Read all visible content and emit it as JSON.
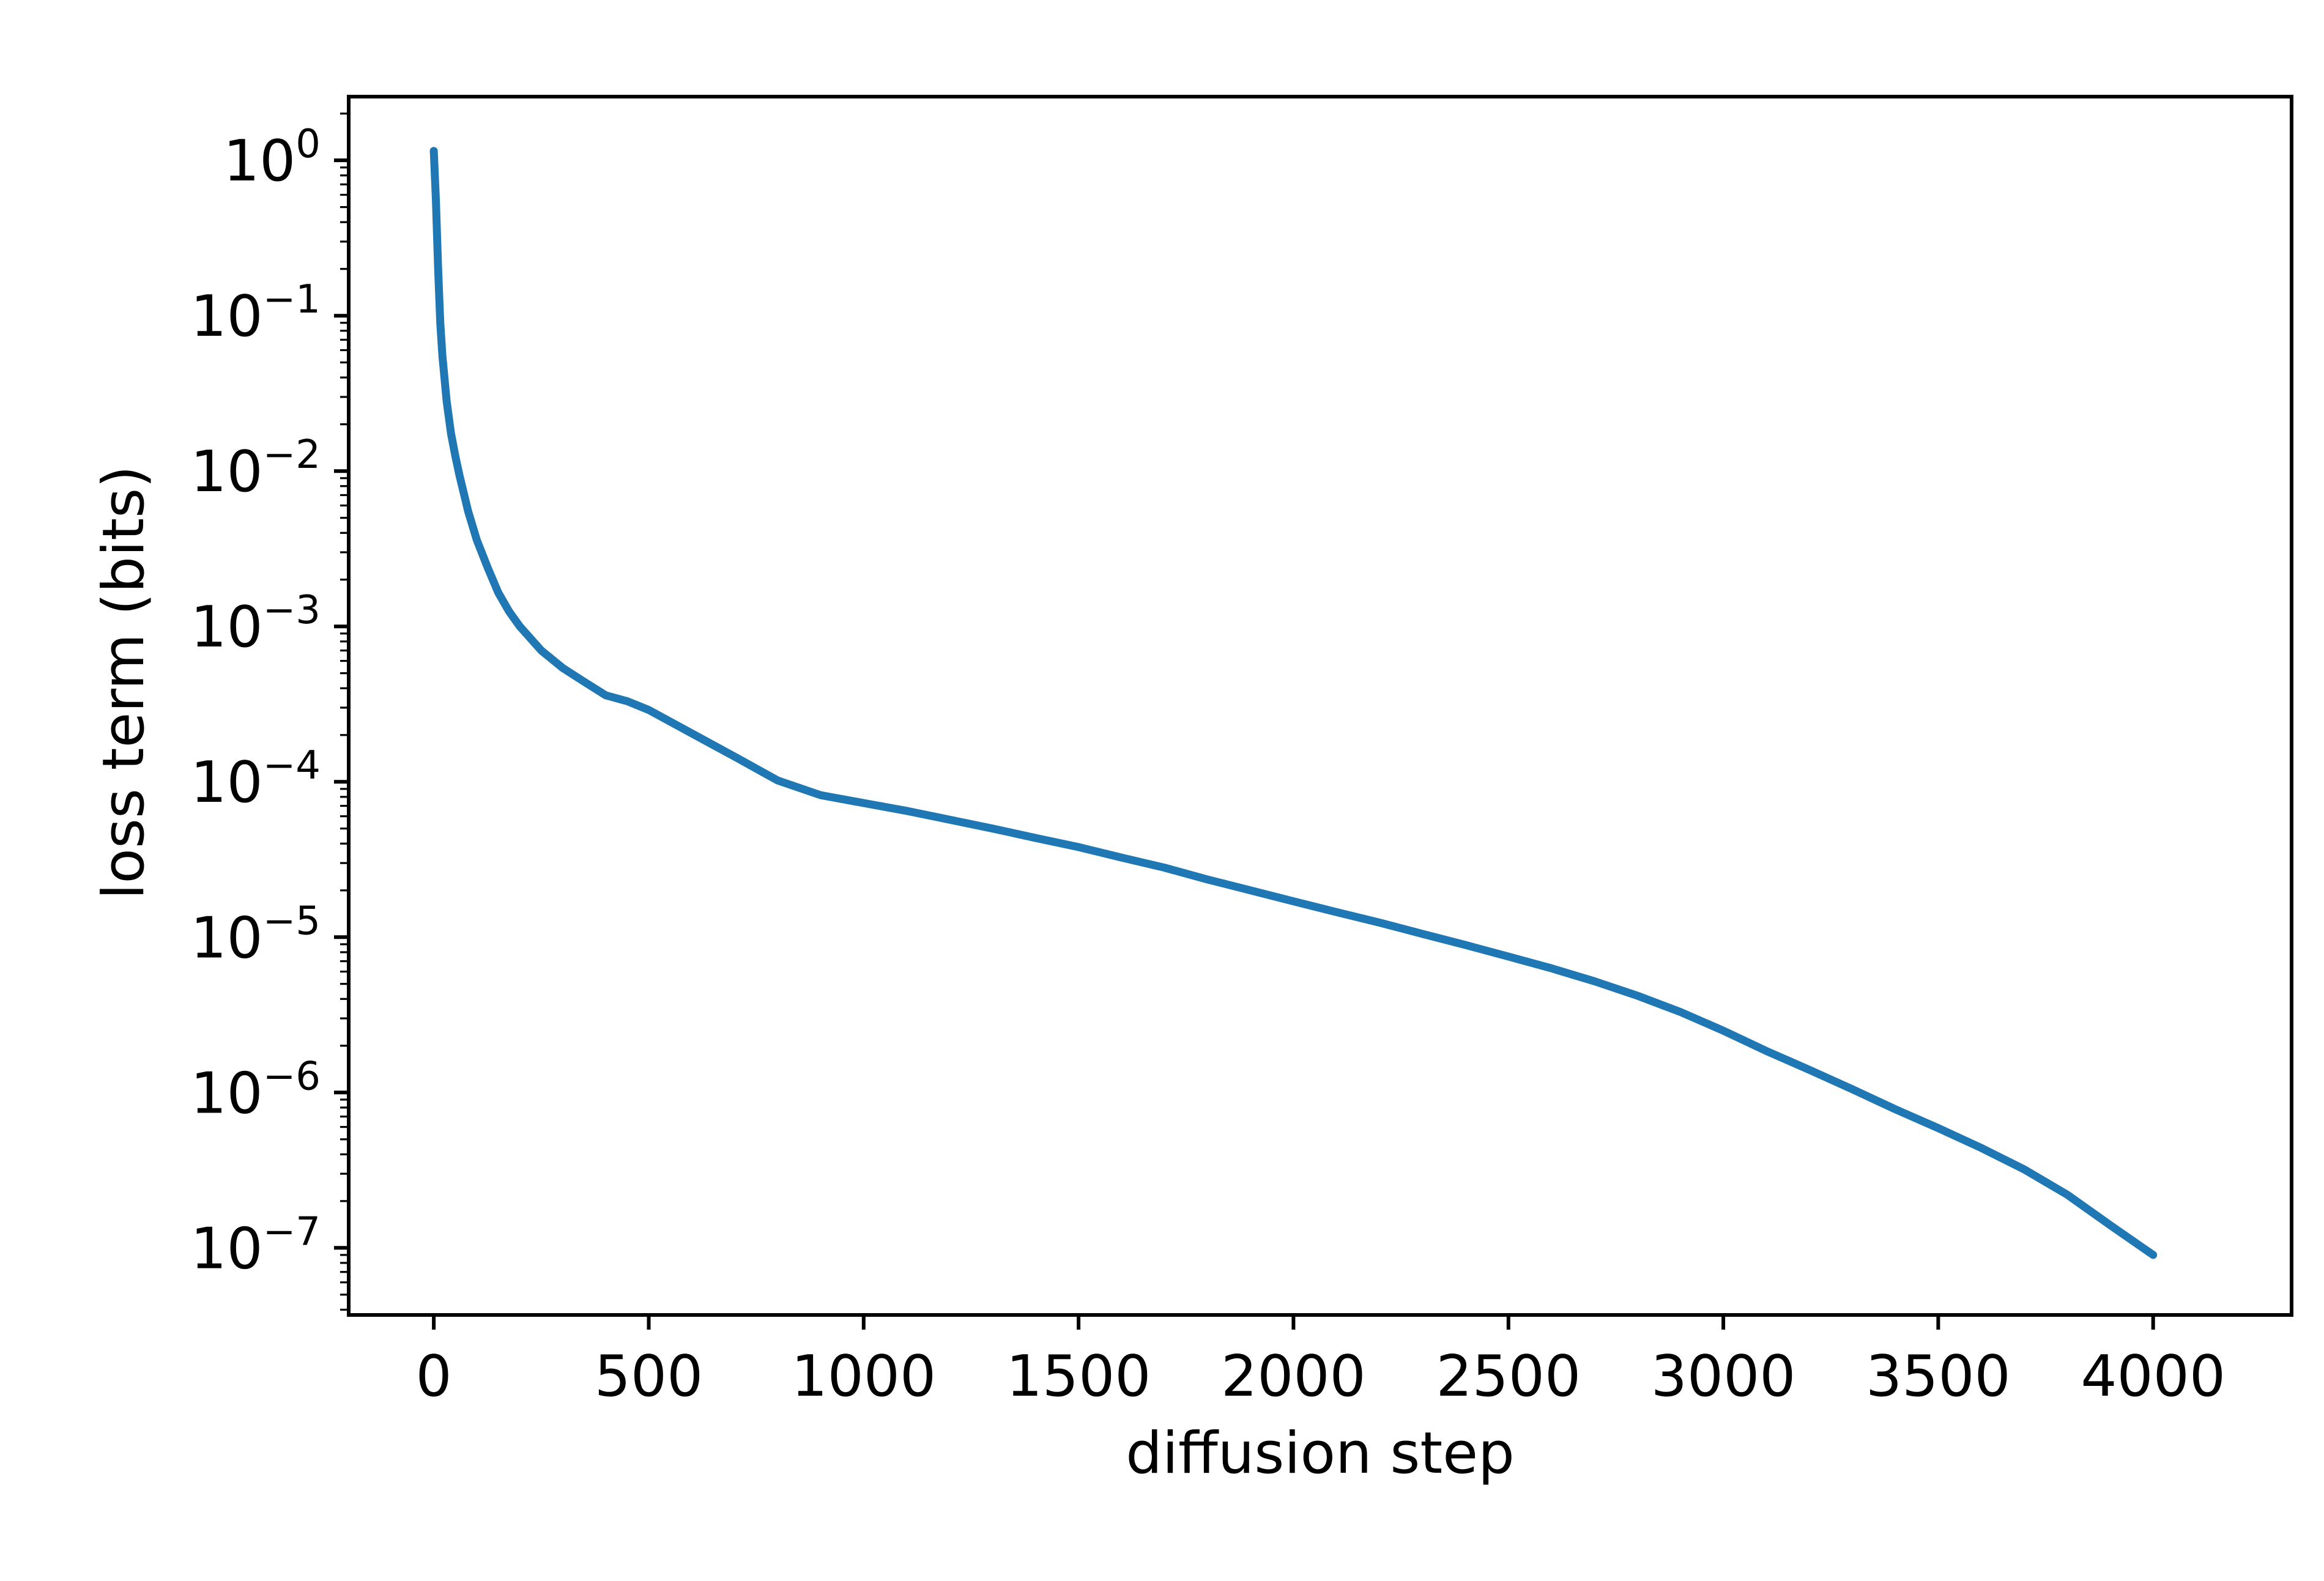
{
  "chart_data": {
    "type": "line",
    "title": "",
    "xlabel": "diffusion step",
    "ylabel": "loss term (bits)",
    "grid": false,
    "legend": "none",
    "yscale": "log",
    "xlim": [
      -198,
      4322
    ],
    "ylim": [
      3.7e-08,
      2.57
    ],
    "x_ticks": [
      0,
      500,
      1000,
      1500,
      2000,
      2500,
      3000,
      3500,
      4000
    ],
    "y_tick_exponents": [
      0,
      -1,
      -2,
      -3,
      -4,
      -5,
      -6,
      -7
    ],
    "line_color": "#1f77b4",
    "axis_color": "#000000",
    "background_color": "#ffffff",
    "series": [
      {
        "name": "loss term (bits)",
        "x": [
          0,
          5,
          10,
          15,
          20,
          30,
          40,
          50,
          60,
          80,
          100,
          125,
          150,
          175,
          200,
          250,
          300,
          350,
          400,
          450,
          500,
          600,
          700,
          800,
          900,
          1000,
          1100,
          1200,
          1300,
          1400,
          1500,
          1600,
          1700,
          1800,
          1900,
          2000,
          2100,
          2200,
          2300,
          2400,
          2500,
          2600,
          2700,
          2800,
          2900,
          3000,
          3100,
          3200,
          3300,
          3400,
          3500,
          3600,
          3700,
          3800,
          3900,
          4000
        ],
        "y": [
          1.15,
          0.55,
          0.2,
          0.09,
          0.055,
          0.028,
          0.0175,
          0.0125,
          0.0093,
          0.0055,
          0.0036,
          0.0024,
          0.00165,
          0.00125,
          0.001,
          0.0007,
          0.00054,
          0.00044,
          0.00036,
          0.00033,
          0.00029,
          0.000205,
          0.000145,
          0.000102,
          8.2e-05,
          7.3e-05,
          6.5e-05,
          5.7e-05,
          5e-05,
          4.35e-05,
          3.8e-05,
          3.25e-05,
          2.8e-05,
          2.35e-05,
          2e-05,
          1.7e-05,
          1.45e-05,
          1.24e-05,
          1.05e-05,
          8.9e-06,
          7.5e-06,
          6.3e-06,
          5.2e-06,
          4.2e-06,
          3.3e-06,
          2.5e-06,
          1.85e-06,
          1.4e-06,
          1.05e-06,
          7.8e-07,
          5.9e-07,
          4.4e-07,
          3.2e-07,
          2.2e-07,
          1.4e-07,
          9e-08
        ]
      }
    ]
  }
}
